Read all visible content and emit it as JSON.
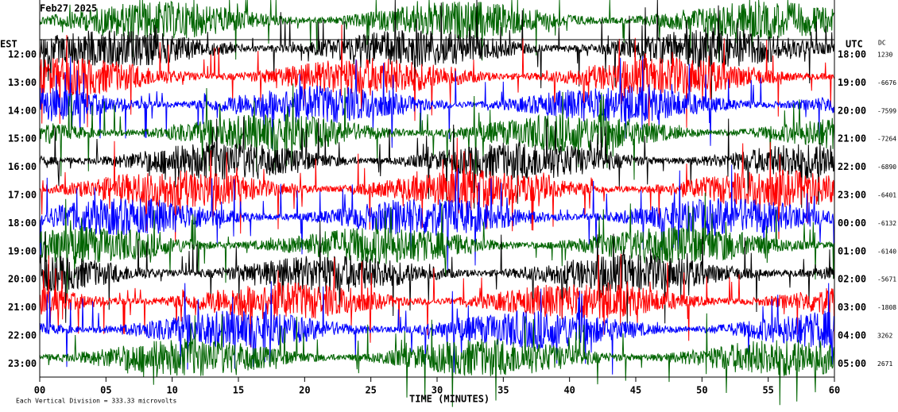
{
  "chart_data": {
    "type": "helicorder",
    "title": "Feb27 2025",
    "left_header": "EST",
    "right_header": "UTC",
    "dc_header": "DC",
    "rows_left": [
      "12:00",
      "13:00",
      "14:00",
      "15:00",
      "16:00",
      "17:00",
      "18:00",
      "19:00",
      "20:00",
      "21:00",
      "22:00",
      "23:00"
    ],
    "rows_right": [
      "18:00",
      "19:00",
      "20:00",
      "21:00",
      "22:00",
      "23:00",
      "00:00",
      "01:00",
      "02:00",
      "03:00",
      "04:00",
      "05:00"
    ],
    "dc": [
      1230,
      -6676,
      -7599,
      -7264,
      -6890,
      -6401,
      -6132,
      -6140,
      -5671,
      -1808,
      3262,
      2671
    ],
    "colors": [
      "#000000",
      "#ff0000",
      "#0000ff",
      "#006400"
    ],
    "xlabel": "TIME (MINUTES)",
    "xlim": [
      0,
      60
    ],
    "xticks": [
      {
        "value": 0,
        "label": "00"
      },
      {
        "value": 5,
        "label": "05"
      },
      10,
      15,
      20,
      25,
      30,
      35,
      40,
      45,
      50,
      55,
      60
    ],
    "footer": "Each Vertical Division =  333.33 microvolts"
  }
}
